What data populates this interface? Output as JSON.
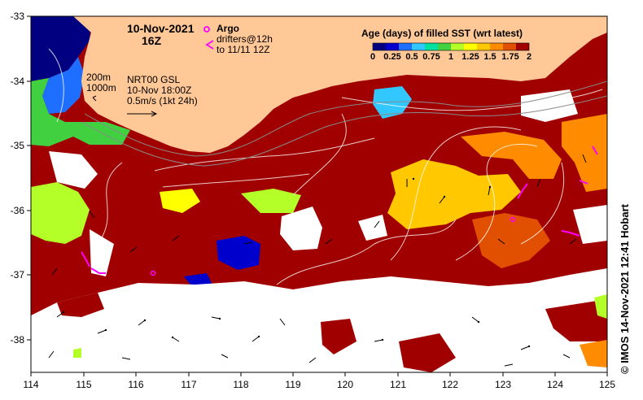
{
  "map": {
    "title_date": "10-Nov-2021",
    "title_time": "16Z",
    "legend_argo_label": "Argo",
    "legend_drifters_line1": "drifters@12h",
    "legend_drifters_line2": "to 11/11 12Z",
    "isobath_label_1": "200m",
    "isobath_label_2": "1000m",
    "product_line1": "NRT00 GSL",
    "product_line2": "10-Nov 18:00Z",
    "vector_scale_label": "0.5m/s (1kt 24h)",
    "credit": "© IMOS 14-Nov-2021 12:41 Hobart",
    "lat_ticks": [
      "-33",
      "-34",
      "-35",
      "-36",
      "-37",
      "-38"
    ],
    "lon_ticks": [
      "114",
      "115",
      "116",
      "117",
      "118",
      "119",
      "120",
      "121",
      "122",
      "123",
      "124",
      "125"
    ],
    "extent": {
      "lon_min": 114,
      "lon_max": 125,
      "lat_min": -38.5,
      "lat_max": -33
    },
    "colors": {
      "land": "#FFC896",
      "no_data": "#FFFFFF",
      "argo": "#FF00FF",
      "drifters": "#FF00FF"
    }
  },
  "colorbar": {
    "title": "Age (days) of filled SST (wrt latest)",
    "tick_labels": [
      "0",
      "0.25",
      "0.5",
      "0.75",
      "1",
      "1.25",
      "1.5",
      "1.75",
      "2"
    ],
    "range": [
      0,
      2
    ],
    "palette": [
      "#000080",
      "#0000CD",
      "#1E6EFF",
      "#32C8FF",
      "#00E0A0",
      "#40D040",
      "#B4FF28",
      "#FFFF00",
      "#FFC800",
      "#FF8C00",
      "#E05000",
      "#A00000"
    ]
  }
}
